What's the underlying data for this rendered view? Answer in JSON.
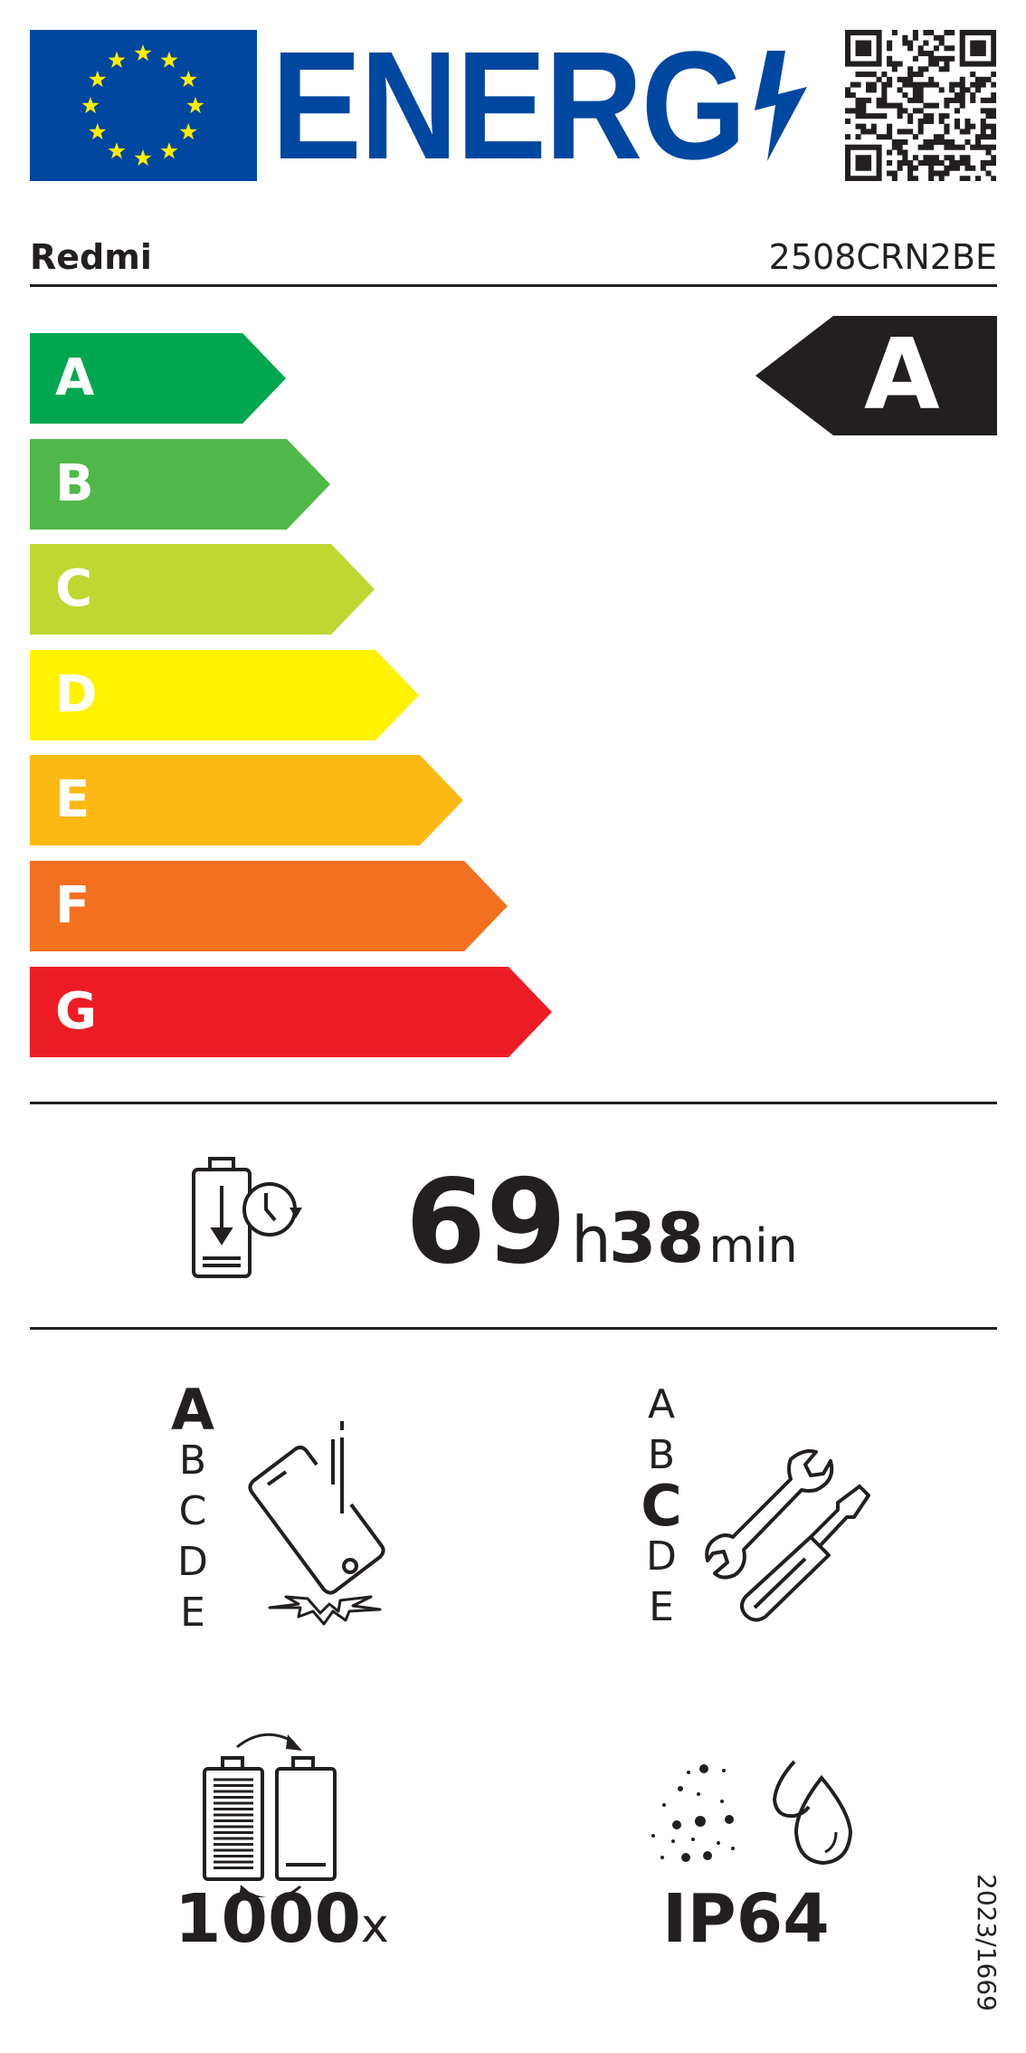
{
  "header": {
    "logo_text": "ENERG",
    "brand": "Redmi",
    "model": "2508CRN2BE",
    "eu_flag_color": "#0047a0",
    "star_color": "#ffed00",
    "qr_code": "qr-code"
  },
  "energy_scale": {
    "classes": [
      {
        "letter": "A",
        "color": "#00a650"
      },
      {
        "letter": "B",
        "color": "#50b848"
      },
      {
        "letter": "C",
        "color": "#bfd730"
      },
      {
        "letter": "D",
        "color": "#fff200"
      },
      {
        "letter": "E",
        "color": "#fdb913"
      },
      {
        "letter": "F",
        "color": "#f37021"
      },
      {
        "letter": "G",
        "color": "#ed1c24"
      }
    ],
    "rating": "A"
  },
  "battery_endurance": {
    "hours": "69",
    "hours_unit": "h",
    "minutes": "38",
    "minutes_unit": "min",
    "icon": "battery-clock-icon"
  },
  "drop_reliability": {
    "classes": [
      "A",
      "B",
      "C",
      "D",
      "E"
    ],
    "selected": "A",
    "icon": "phone-drop-icon"
  },
  "repairability": {
    "classes": [
      "A",
      "B",
      "C",
      "D",
      "E"
    ],
    "selected": "C",
    "icon": "wrench-screwdriver-icon"
  },
  "battery_cycles": {
    "value": "1000",
    "unit": "x",
    "icon": "battery-cycle-icon"
  },
  "ingress_protection": {
    "value": "IP64",
    "icon": "dust-water-icon"
  },
  "regulation": "2023/1669"
}
